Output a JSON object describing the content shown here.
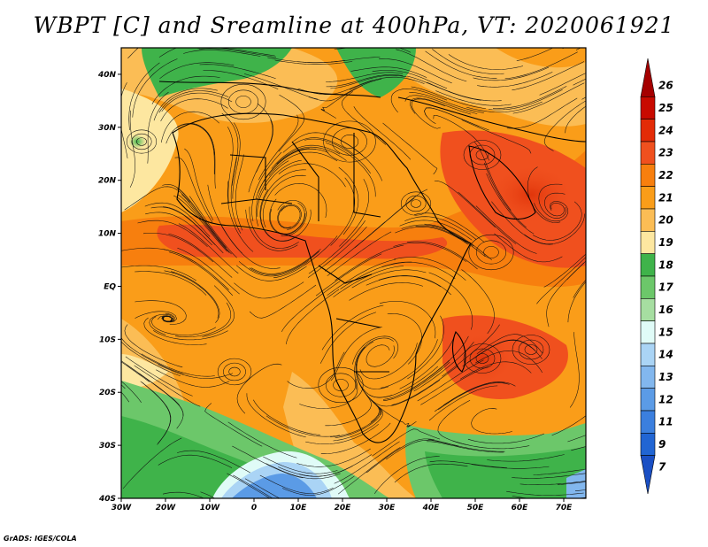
{
  "title": "WBPT [C] and Sreamline at 400hPa, VT: 2020061921",
  "footer": "GrADS: IGES/COLA",
  "map": {
    "lon_range": [
      -30,
      75
    ],
    "lat_range": [
      -40,
      45
    ],
    "lon_ticks": [
      {
        "value": -30,
        "label": "30W"
      },
      {
        "value": -20,
        "label": "20W"
      },
      {
        "value": -10,
        "label": "10W"
      },
      {
        "value": 0,
        "label": "0"
      },
      {
        "value": 10,
        "label": "10E"
      },
      {
        "value": 20,
        "label": "20E"
      },
      {
        "value": 30,
        "label": "30E"
      },
      {
        "value": 40,
        "label": "40E"
      },
      {
        "value": 50,
        "label": "50E"
      },
      {
        "value": 60,
        "label": "60E"
      },
      {
        "value": 70,
        "label": "70E"
      }
    ],
    "lat_ticks": [
      {
        "value": 40,
        "label": "40N"
      },
      {
        "value": 30,
        "label": "30N"
      },
      {
        "value": 20,
        "label": "20N"
      },
      {
        "value": 10,
        "label": "10N"
      },
      {
        "value": 0,
        "label": "EQ"
      },
      {
        "value": -10,
        "label": "10S"
      },
      {
        "value": -20,
        "label": "20S"
      },
      {
        "value": -30,
        "label": "30S"
      },
      {
        "value": -40,
        "label": "40S"
      }
    ]
  },
  "colorbar": {
    "levels": [
      {
        "label": "26",
        "color": "#a50000"
      },
      {
        "label": "25",
        "color": "#c80a00"
      },
      {
        "label": "24",
        "color": "#e32b07"
      },
      {
        "label": "23",
        "color": "#f0501e"
      },
      {
        "label": "22",
        "color": "#f77f0e"
      },
      {
        "label": "21",
        "color": "#fa9d19"
      },
      {
        "label": "20",
        "color": "#fbbd55"
      },
      {
        "label": "19",
        "color": "#fde7a0"
      },
      {
        "label": "18",
        "color": "#3fb34a"
      },
      {
        "label": "17",
        "color": "#6cc76a"
      },
      {
        "label": "16",
        "color": "#a6dea1"
      },
      {
        "label": "15",
        "color": "#e0fbf7"
      },
      {
        "label": "14",
        "color": "#aad4f5"
      },
      {
        "label": "13",
        "color": "#82b7ee"
      },
      {
        "label": "12",
        "color": "#5b9be6"
      },
      {
        "label": "11",
        "color": "#3b7fde"
      },
      {
        "label": "9",
        "color": "#2165d3"
      },
      {
        "label": "7",
        "color": "#1a4fc4"
      }
    ]
  }
}
